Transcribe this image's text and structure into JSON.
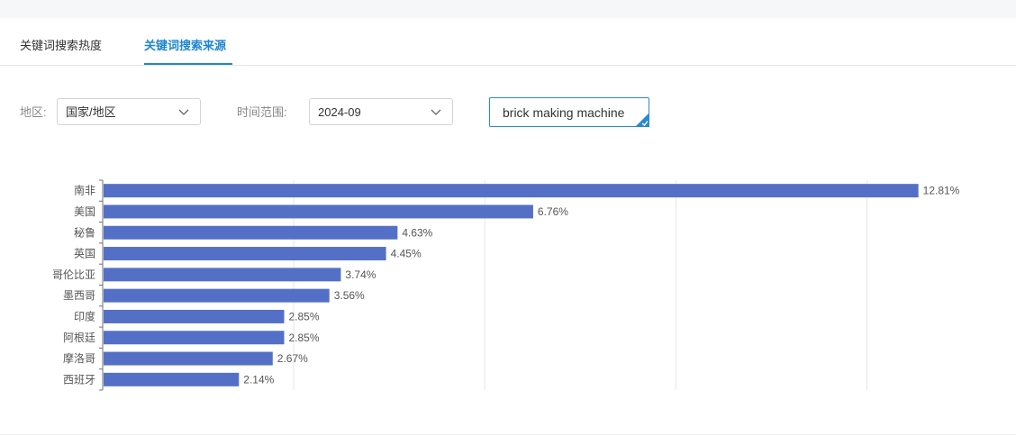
{
  "tabs": [
    {
      "label": "关键词搜索热度",
      "active": false
    },
    {
      "label": "关键词搜索来源",
      "active": true
    }
  ],
  "filters": {
    "region_label": "地区:",
    "region_value": "国家/地区",
    "time_label": "时间范围:",
    "time_value": "2024-09",
    "keyword_value": "brick making machine"
  },
  "colors": {
    "accent": "#1f86d1",
    "bar": "#5470c6"
  },
  "icons": {
    "dropdown": "chevron-down-icon",
    "keyword_corner": "checkmark-icon"
  },
  "chart_data": {
    "type": "bar",
    "orientation": "horizontal",
    "categories": [
      "南非",
      "美国",
      "秘鲁",
      "英国",
      "哥伦比亚",
      "墨西哥",
      "印度",
      "阿根廷",
      "摩洛哥",
      "西班牙"
    ],
    "values": [
      12.81,
      6.76,
      4.63,
      4.45,
      3.74,
      3.56,
      2.85,
      2.85,
      2.67,
      2.14
    ],
    "data_labels": [
      "12.81%",
      "6.76%",
      "4.63%",
      "4.45%",
      "3.74%",
      "3.56%",
      "2.85%",
      "2.85%",
      "2.67%",
      "2.14%"
    ],
    "xlim": [
      0,
      15
    ],
    "x_gridlines": [
      0,
      3,
      6,
      9,
      12,
      15
    ],
    "grid": true,
    "legend": "none"
  }
}
